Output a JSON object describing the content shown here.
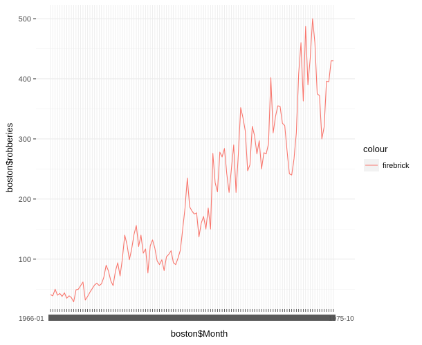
{
  "chart_data": {
    "type": "line",
    "xlabel": "boston$Month",
    "ylabel": "boston$robberies",
    "legend": {
      "title": "colour",
      "position": "right",
      "entries": [
        {
          "label": "firebrick",
          "color": "#F8766D"
        }
      ]
    },
    "x_ticks_note": "tick labels overlap and are illegible; left fragment reads 1966-01",
    "x_tick_edge_labels": {
      "left": "1966-01",
      "right": "1975-10"
    },
    "yticks": [
      100,
      200,
      300,
      400,
      500
    ],
    "ylim": [
      17,
      523
    ],
    "grid": true,
    "series": [
      {
        "color": "#F8766D",
        "values": [
          41,
          39,
          50,
          40,
          43,
          38,
          44,
          35,
          39,
          36,
          29,
          49,
          50,
          56,
          62,
          32,
          38,
          45,
          51,
          57,
          60,
          56,
          59,
          70,
          90,
          80,
          64,
          56,
          80,
          94,
          72,
          101,
          140,
          124,
          99,
          117,
          141,
          156,
          121,
          140,
          110,
          117,
          77,
          122,
          132,
          118,
          97,
          91,
          99,
          81,
          104,
          108,
          114,
          94,
          91,
          102,
          115,
          150,
          185,
          235,
          187,
          180,
          175,
          177,
          137,
          160,
          171,
          150,
          185,
          150,
          276,
          227,
          212,
          278,
          270,
          284,
          242,
          211,
          250,
          290,
          211,
          275,
          352,
          335,
          313,
          247,
          257,
          321,
          305,
          275,
          297,
          250,
          277,
          275,
          292,
          402,
          310,
          337,
          355,
          354,
          326,
          322,
          280,
          242,
          240,
          267,
          310,
          408,
          460,
          363,
          487,
          390,
          435,
          500,
          460,
          375,
          372,
          300,
          320,
          396,
          395,
          430,
          430
        ]
      }
    ]
  }
}
